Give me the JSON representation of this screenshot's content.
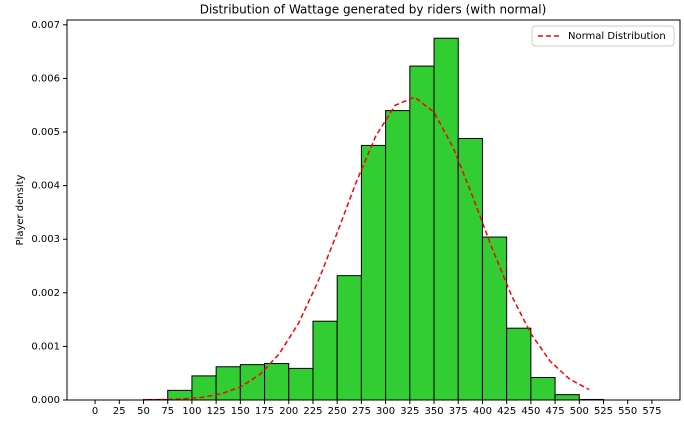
{
  "chart_data": {
    "type": "histogram",
    "title": "Distribution of Wattage generated by riders (with normal)",
    "ylabel": "Player density",
    "bins": [
      50,
      75,
      100,
      125,
      150,
      175,
      200,
      225,
      250,
      275,
      300,
      325,
      350,
      375,
      400,
      425,
      450,
      475,
      500,
      525
    ],
    "values": [
      1e-05,
      0.00018,
      0.00045,
      0.00062,
      0.00066,
      0.00068,
      0.00059,
      0.00147,
      0.00232,
      0.00475,
      0.0054,
      0.00623,
      0.00675,
      0.00488,
      0.00304,
      0.00134,
      0.00042,
      0.0001,
      1e-05
    ],
    "color": "#32cd32",
    "edgecolor": "#000000",
    "lines": [
      {
        "name": "Normal Distribution",
        "color": "#ff0000",
        "dashed": true,
        "x": [
          50,
          70,
          90,
          110,
          130,
          150,
          170,
          190,
          210,
          230,
          250,
          270,
          290,
          310,
          330,
          350,
          370,
          390,
          410,
          430,
          450,
          470,
          490,
          510
        ],
        "values": [
          2.5e-06,
          7.4e-06,
          2e-05,
          5e-05,
          0.000114,
          0.000242,
          0.000474,
          0.000857,
          0.00143,
          0.0022,
          0.00312,
          0.00408,
          0.00493,
          0.0055,
          0.00565,
          0.00537,
          0.0047,
          0.00379,
          0.00283,
          0.00195,
          0.00124,
          0.00072,
          0.00039,
          0.000195
        ]
      }
    ],
    "legend": "upper right",
    "xlim": [
      -29,
      604
    ],
    "ylim": [
      0,
      0.00709
    ],
    "xticks": [
      0,
      25,
      50,
      75,
      100,
      125,
      150,
      175,
      200,
      225,
      250,
      275,
      300,
      325,
      350,
      375,
      400,
      425,
      450,
      475,
      500,
      525,
      550,
      575
    ],
    "yticks": [
      {
        "value": 0,
        "label": "0.000"
      },
      {
        "value": 0.001,
        "label": "0.001"
      },
      {
        "value": 0.002,
        "label": "0.002"
      },
      {
        "value": 0.003,
        "label": "0.003"
      },
      {
        "value": 0.004,
        "label": "0.004"
      },
      {
        "value": 0.005,
        "label": "0.005"
      },
      {
        "value": 0.006,
        "label": "0.006"
      },
      {
        "value": 0.007,
        "label": "0.007"
      }
    ]
  }
}
